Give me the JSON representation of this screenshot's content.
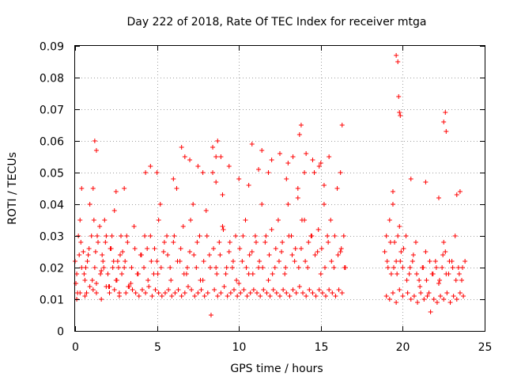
{
  "chart_data": {
    "type": "scatter",
    "title": "Day 222 of 2018, Rate Of TEC Index for receiver mtga",
    "xlabel": "GPS time / hours",
    "ylabel": "ROTI / TECUs",
    "xlim": [
      0,
      25
    ],
    "ylim": [
      0,
      0.09
    ],
    "x_ticks": [
      0,
      5,
      10,
      15,
      20,
      25
    ],
    "x_tick_labels": [
      "0",
      "5",
      "10",
      "15",
      "20",
      "25"
    ],
    "y_ticks": [
      0,
      0.01,
      0.02,
      0.03,
      0.04,
      0.05,
      0.06,
      0.07,
      0.08,
      0.09
    ],
    "y_tick_labels": [
      "0",
      "0.01",
      "0.02",
      "0.03",
      "0.04",
      "0.05",
      "0.06",
      "0.07",
      "0.08",
      "0.09"
    ],
    "grid": true,
    "marker": "+",
    "series": [
      {
        "name": "ROTI",
        "color": "#ff0000",
        "x": [
          0.0,
          0.1,
          0.2,
          0.3,
          0.4,
          0.5,
          0.6,
          0.7,
          0.8,
          0.9,
          1.0,
          1.1,
          1.2,
          1.3,
          1.4,
          1.5,
          1.6,
          1.7,
          1.8,
          1.9,
          2.0,
          2.1,
          2.2,
          2.3,
          2.4,
          2.5,
          2.6,
          2.7,
          2.8,
          2.9,
          3.0,
          3.2,
          3.4,
          3.6,
          3.8,
          4.0,
          4.2,
          4.4,
          4.6,
          4.8,
          5.0,
          5.1,
          5.2,
          5.4,
          5.6,
          5.8,
          6.0,
          6.2,
          6.4,
          6.6,
          6.8,
          7.0,
          7.2,
          7.4,
          7.6,
          7.8,
          8.0,
          8.2,
          8.4,
          8.6,
          8.8,
          9.0,
          9.2,
          9.4,
          9.6,
          9.8,
          10.0,
          10.2,
          10.4,
          10.6,
          10.8,
          11.0,
          11.2,
          11.4,
          11.6,
          11.8,
          12.0,
          12.2,
          12.4,
          12.6,
          12.8,
          13.0,
          13.2,
          13.4,
          13.6,
          13.8,
          14.0,
          14.2,
          14.4,
          14.6,
          14.8,
          15.0,
          15.2,
          15.4,
          15.6,
          15.8,
          16.0,
          16.2,
          16.4,
          16.5,
          18.9,
          19.0,
          19.1,
          19.2,
          19.3,
          19.4,
          19.5,
          19.6,
          19.7,
          19.8,
          19.9,
          20.0,
          20.2,
          20.4,
          20.6,
          20.8,
          21.0,
          21.2,
          21.4,
          21.6,
          21.8,
          22.0,
          22.2,
          22.4,
          22.5,
          22.6,
          22.8,
          23.0,
          23.2,
          23.4,
          23.6,
          23.8,
          0.05,
          0.15,
          0.25,
          0.35,
          0.55,
          0.65,
          0.75,
          0.85,
          1.05,
          1.15,
          1.25,
          1.35,
          1.55,
          1.65,
          1.75,
          1.85,
          2.05,
          2.15,
          2.25,
          2.35,
          2.55,
          2.65,
          2.75,
          2.85,
          3.05,
          3.15,
          3.25,
          3.45,
          3.65,
          3.85,
          4.05,
          4.25,
          4.45,
          4.65,
          4.85,
          5.05,
          5.25,
          5.45,
          5.65,
          5.85,
          6.05,
          6.25,
          6.45,
          6.65,
          6.85,
          7.05,
          7.25,
          7.45,
          7.65,
          7.85,
          8.05,
          8.25,
          8.45,
          8.65,
          8.85,
          9.05,
          9.25,
          9.45,
          9.65,
          9.85,
          10.05,
          10.25,
          10.45,
          10.65,
          10.85,
          11.05,
          11.25,
          11.45,
          11.65,
          11.85,
          12.05,
          12.25,
          12.45,
          12.65,
          12.85,
          13.05,
          13.25,
          13.45,
          13.65,
          13.85,
          14.05,
          14.25,
          14.45,
          14.65,
          14.85,
          15.05,
          15.25,
          15.45,
          15.65,
          15.85,
          16.05,
          16.25,
          16.45,
          19.05,
          19.25,
          19.45,
          19.65,
          19.85,
          20.05,
          20.25,
          20.45,
          20.65,
          20.85,
          21.05,
          21.25,
          21.45,
          21.65,
          21.85,
          22.05,
          22.25,
          22.45,
          22.65,
          22.85,
          23.05,
          23.25,
          23.45,
          23.65,
          0.1,
          0.3,
          0.6,
          0.9,
          1.1,
          1.3,
          1.6,
          1.9,
          2.1,
          2.4,
          2.7,
          3.1,
          3.3,
          3.5,
          3.7,
          3.9,
          4.1,
          4.3,
          4.5,
          4.7,
          4.9,
          5.1,
          5.3,
          5.5,
          5.7,
          5.9,
          6.1,
          6.3,
          6.5,
          6.7,
          6.9,
          7.1,
          7.3,
          7.5,
          7.7,
          7.9,
          8.1,
          8.3,
          8.5,
          8.7,
          8.9,
          9.1,
          9.3,
          9.5,
          9.7,
          9.9,
          10.1,
          10.3,
          10.5,
          10.7,
          10.9,
          11.1,
          11.3,
          11.5,
          11.7,
          11.9,
          12.1,
          12.3,
          12.5,
          12.7,
          12.9,
          13.1,
          13.3,
          13.5,
          13.7,
          13.9,
          14.1,
          14.3,
          14.5,
          14.7,
          14.9,
          15.1,
          15.3,
          15.5,
          15.7,
          15.9,
          16.1,
          16.3,
          19.0,
          19.2,
          19.4,
          19.6,
          19.8,
          20.0,
          20.3,
          20.5,
          20.7,
          20.9,
          21.1,
          21.3,
          21.5,
          21.7,
          21.9,
          22.1,
          22.3,
          22.5,
          22.7,
          22.9,
          23.1,
          23.3,
          23.5,
          23.7,
          1.2,
          1.3,
          3.0,
          4.6,
          5.0,
          6.5,
          6.7,
          7.0,
          7.5,
          8.4,
          8.6,
          8.7,
          8.9,
          9.4,
          10.8,
          11.2,
          11.4,
          12.0,
          12.5,
          13.0,
          13.3,
          13.7,
          13.8,
          14.1,
          14.5,
          14.9,
          15.0,
          15.5,
          16.3,
          19.6,
          19.7,
          19.75,
          19.8,
          19.85,
          22.5,
          22.6,
          22.65,
          23.5,
          0.4,
          2.5,
          4.3,
          6.0,
          7.8,
          8.6,
          9.0,
          10.0,
          10.6,
          11.8,
          12.9,
          13.6,
          14.0,
          15.2,
          16.2,
          19.4,
          20.5,
          21.4,
          22.2,
          23.3
        ],
        "y": [
          0.022,
          0.018,
          0.03,
          0.035,
          0.02,
          0.025,
          0.016,
          0.012,
          0.024,
          0.04,
          0.03,
          0.045,
          0.02,
          0.015,
          0.028,
          0.033,
          0.019,
          0.022,
          0.035,
          0.03,
          0.018,
          0.014,
          0.026,
          0.02,
          0.038,
          0.016,
          0.022,
          0.012,
          0.03,
          0.025,
          0.02,
          0.028,
          0.015,
          0.033,
          0.018,
          0.024,
          0.02,
          0.026,
          0.03,
          0.018,
          0.022,
          0.035,
          0.04,
          0.025,
          0.03,
          0.02,
          0.028,
          0.045,
          0.022,
          0.033,
          0.018,
          0.025,
          0.04,
          0.02,
          0.03,
          0.016,
          0.038,
          0.024,
          0.05,
          0.02,
          0.028,
          0.033,
          0.018,
          0.025,
          0.02,
          0.03,
          0.015,
          0.022,
          0.035,
          0.018,
          0.025,
          0.03,
          0.02,
          0.04,
          0.028,
          0.016,
          0.032,
          0.02,
          0.035,
          0.025,
          0.018,
          0.04,
          0.03,
          0.022,
          0.045,
          0.026,
          0.035,
          0.02,
          0.03,
          0.05,
          0.025,
          0.018,
          0.04,
          0.03,
          0.035,
          0.02,
          0.045,
          0.025,
          0.03,
          0.02,
          0.025,
          0.03,
          0.02,
          0.035,
          0.018,
          0.04,
          0.028,
          0.022,
          0.03,
          0.033,
          0.025,
          0.02,
          0.03,
          0.018,
          0.022,
          0.028,
          0.016,
          0.02,
          0.025,
          0.012,
          0.018,
          0.022,
          0.015,
          0.02,
          0.028,
          0.025,
          0.018,
          0.022,
          0.03,
          0.02,
          0.016,
          0.022,
          0.015,
          0.012,
          0.024,
          0.028,
          0.018,
          0.02,
          0.022,
          0.026,
          0.016,
          0.035,
          0.025,
          0.03,
          0.018,
          0.024,
          0.02,
          0.028,
          0.014,
          0.026,
          0.03,
          0.022,
          0.016,
          0.02,
          0.024,
          0.018,
          0.022,
          0.03,
          0.014,
          0.02,
          0.026,
          0.018,
          0.024,
          0.03,
          0.016,
          0.022,
          0.026,
          0.018,
          0.02,
          0.028,
          0.024,
          0.016,
          0.03,
          0.022,
          0.026,
          0.018,
          0.02,
          0.035,
          0.024,
          0.028,
          0.016,
          0.022,
          0.03,
          0.02,
          0.026,
          0.018,
          0.024,
          0.032,
          0.02,
          0.028,
          0.022,
          0.016,
          0.026,
          0.03,
          0.02,
          0.024,
          0.018,
          0.028,
          0.022,
          0.02,
          0.03,
          0.024,
          0.018,
          0.026,
          0.022,
          0.028,
          0.02,
          0.03,
          0.024,
          0.026,
          0.02,
          0.035,
          0.022,
          0.028,
          0.03,
          0.024,
          0.032,
          0.026,
          0.02,
          0.028,
          0.022,
          0.03,
          0.024,
          0.026,
          0.02,
          0.022,
          0.028,
          0.02,
          0.018,
          0.022,
          0.026,
          0.016,
          0.02,
          0.024,
          0.018,
          0.014,
          0.02,
          0.016,
          0.022,
          0.018,
          0.02,
          0.016,
          0.024,
          0.018,
          0.022,
          0.02,
          0.016,
          0.018,
          0.02,
          0.01,
          0.012,
          0.011,
          0.014,
          0.013,
          0.012,
          0.01,
          0.014,
          0.012,
          0.013,
          0.011,
          0.012,
          0.014,
          0.013,
          0.012,
          0.011,
          0.013,
          0.012,
          0.014,
          0.011,
          0.013,
          0.012,
          0.011,
          0.012,
          0.013,
          0.011,
          0.012,
          0.013,
          0.011,
          0.012,
          0.014,
          0.013,
          0.011,
          0.012,
          0.013,
          0.011,
          0.012,
          0.005,
          0.013,
          0.011,
          0.012,
          0.014,
          0.011,
          0.012,
          0.013,
          0.011,
          0.012,
          0.013,
          0.011,
          0.012,
          0.013,
          0.012,
          0.011,
          0.013,
          0.012,
          0.011,
          0.013,
          0.012,
          0.011,
          0.013,
          0.012,
          0.011,
          0.013,
          0.012,
          0.014,
          0.012,
          0.011,
          0.013,
          0.012,
          0.011,
          0.013,
          0.012,
          0.011,
          0.013,
          0.012,
          0.011,
          0.013,
          0.012,
          0.011,
          0.01,
          0.012,
          0.009,
          0.013,
          0.011,
          0.012,
          0.01,
          0.011,
          0.009,
          0.012,
          0.01,
          0.011,
          0.006,
          0.01,
          0.009,
          0.011,
          0.01,
          0.012,
          0.009,
          0.011,
          0.01,
          0.012,
          0.011,
          0.06,
          0.057,
          0.045,
          0.052,
          0.05,
          0.058,
          0.055,
          0.054,
          0.052,
          0.058,
          0.055,
          0.06,
          0.055,
          0.052,
          0.059,
          0.051,
          0.057,
          0.054,
          0.056,
          0.053,
          0.055,
          0.062,
          0.065,
          0.056,
          0.054,
          0.052,
          0.053,
          0.055,
          0.065,
          0.087,
          0.085,
          0.074,
          0.069,
          0.068,
          0.066,
          0.069,
          0.063,
          0.044,
          0.045,
          0.044,
          0.05,
          0.048,
          0.05,
          0.047,
          0.043,
          0.048,
          0.046,
          0.05,
          0.048,
          0.042,
          0.05,
          0.046,
          0.05,
          0.044,
          0.048,
          0.047,
          0.042,
          0.043
        ]
      }
    ]
  }
}
